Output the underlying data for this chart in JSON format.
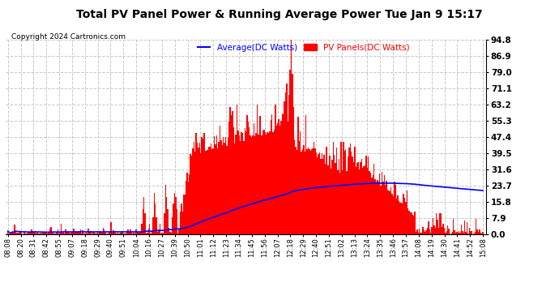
{
  "title": "Total PV Panel Power & Running Average Power Tue Jan 9 15:17",
  "copyright": "Copyright 2024 Cartronics.com",
  "legend_avg": "Average(DC Watts)",
  "legend_pv": "PV Panels(DC Watts)",
  "ytick_labels": [
    "0.0",
    "7.9",
    "15.8",
    "23.7",
    "31.6",
    "39.5",
    "47.4",
    "55.3",
    "63.2",
    "71.1",
    "79.0",
    "86.9",
    "94.8"
  ],
  "ytick_values": [
    0.0,
    7.9,
    15.8,
    23.7,
    31.6,
    39.5,
    47.4,
    55.3,
    63.2,
    71.1,
    79.0,
    86.9,
    94.8
  ],
  "ylim": [
    0,
    94.8
  ],
  "xtick_labels": [
    "08:08",
    "08:20",
    "08:31",
    "08:42",
    "08:55",
    "09:07",
    "09:18",
    "09:29",
    "09:40",
    "09:51",
    "10:04",
    "10:16",
    "10:27",
    "10:39",
    "10:50",
    "11:01",
    "11:12",
    "11:23",
    "11:34",
    "11:45",
    "11:56",
    "12:07",
    "12:18",
    "12:29",
    "12:40",
    "12:51",
    "13:02",
    "13:13",
    "13:24",
    "13:35",
    "13:46",
    "13:57",
    "14:08",
    "14:19",
    "14:30",
    "14:41",
    "14:52",
    "15:08"
  ],
  "background_color": "#ffffff",
  "bar_color": "#ff0000",
  "avg_line_color": "#0000ff",
  "grid_color": "#c8c8c8",
  "title_color": "#000000",
  "copyright_color": "#000000",
  "legend_avg_color": "#0000ff",
  "legend_pv_color": "#ff0000"
}
